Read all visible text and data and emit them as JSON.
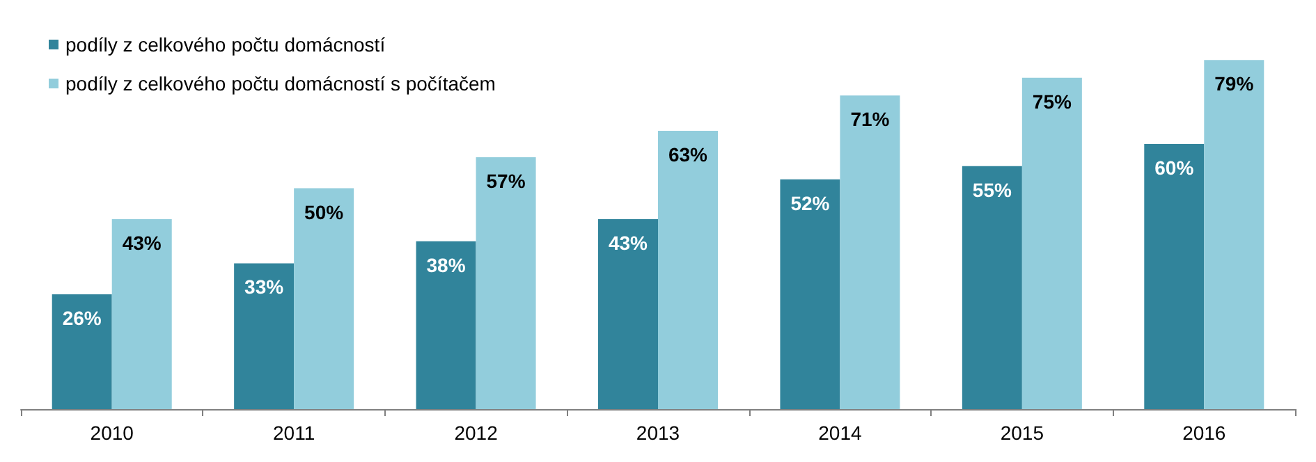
{
  "chart_data": {
    "type": "bar",
    "categories": [
      "2010",
      "2011",
      "2012",
      "2013",
      "2014",
      "2015",
      "2016"
    ],
    "series": [
      {
        "name": "podíly z celkového počtu domácností",
        "color": "#31849b",
        "values": [
          26,
          33,
          38,
          43,
          52,
          55,
          60
        ],
        "value_labels": [
          "26%",
          "33%",
          "38%",
          "43%",
          "52%",
          "55%",
          "60%"
        ]
      },
      {
        "name": "podíly z celkového počtu domácností s počítačem",
        "color": "#92cddc",
        "values": [
          43,
          50,
          57,
          63,
          71,
          75,
          79
        ],
        "value_labels": [
          "43%",
          "50%",
          "57%",
          "63%",
          "71%",
          "75%",
          "79%"
        ]
      }
    ],
    "legend": "top left"
  }
}
